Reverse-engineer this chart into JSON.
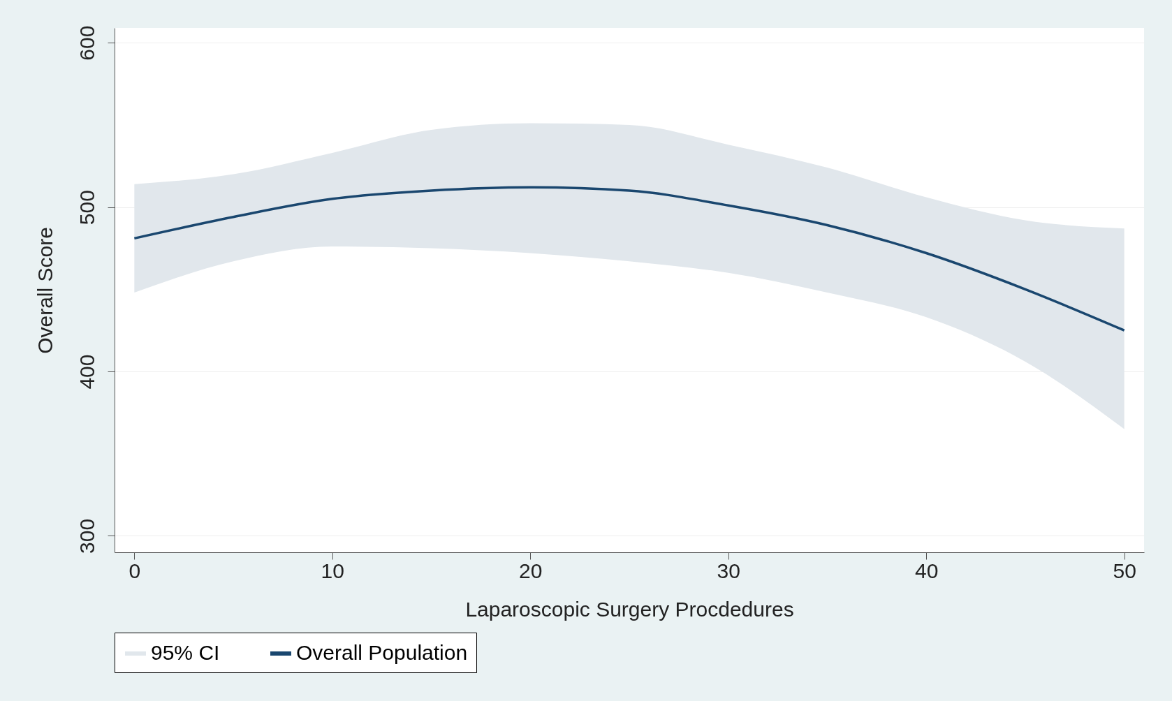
{
  "chart_data": {
    "type": "line",
    "xlabel": "Laparoscopic Surgery Procdedures",
    "ylabel": "Overall Score",
    "x": [
      0,
      5,
      10,
      15,
      20,
      25,
      30,
      35,
      40,
      45,
      50
    ],
    "annotations": [
      "95% CI"
    ],
    "series": [
      {
        "name": "Overall Population",
        "color": "#1a476f",
        "values": [
          481,
          494,
          505,
          510,
          512,
          510,
          501,
          489,
          472,
          450,
          425
        ],
        "upper": [
          514,
          520,
          533,
          547,
          551,
          550,
          538,
          524,
          506,
          492,
          487
        ],
        "lower": [
          448,
          467,
          476,
          475,
          472,
          467,
          460,
          448,
          433,
          406,
          365
        ]
      }
    ],
    "xlim": [
      -1,
      51
    ],
    "xticks": [
      0,
      10,
      20,
      30,
      40,
      50
    ],
    "ylim": [
      290,
      609
    ],
    "yticks": [
      300,
      400,
      500,
      600
    ],
    "grid": "y",
    "legend": "bottom",
    "line_style": "solid"
  }
}
